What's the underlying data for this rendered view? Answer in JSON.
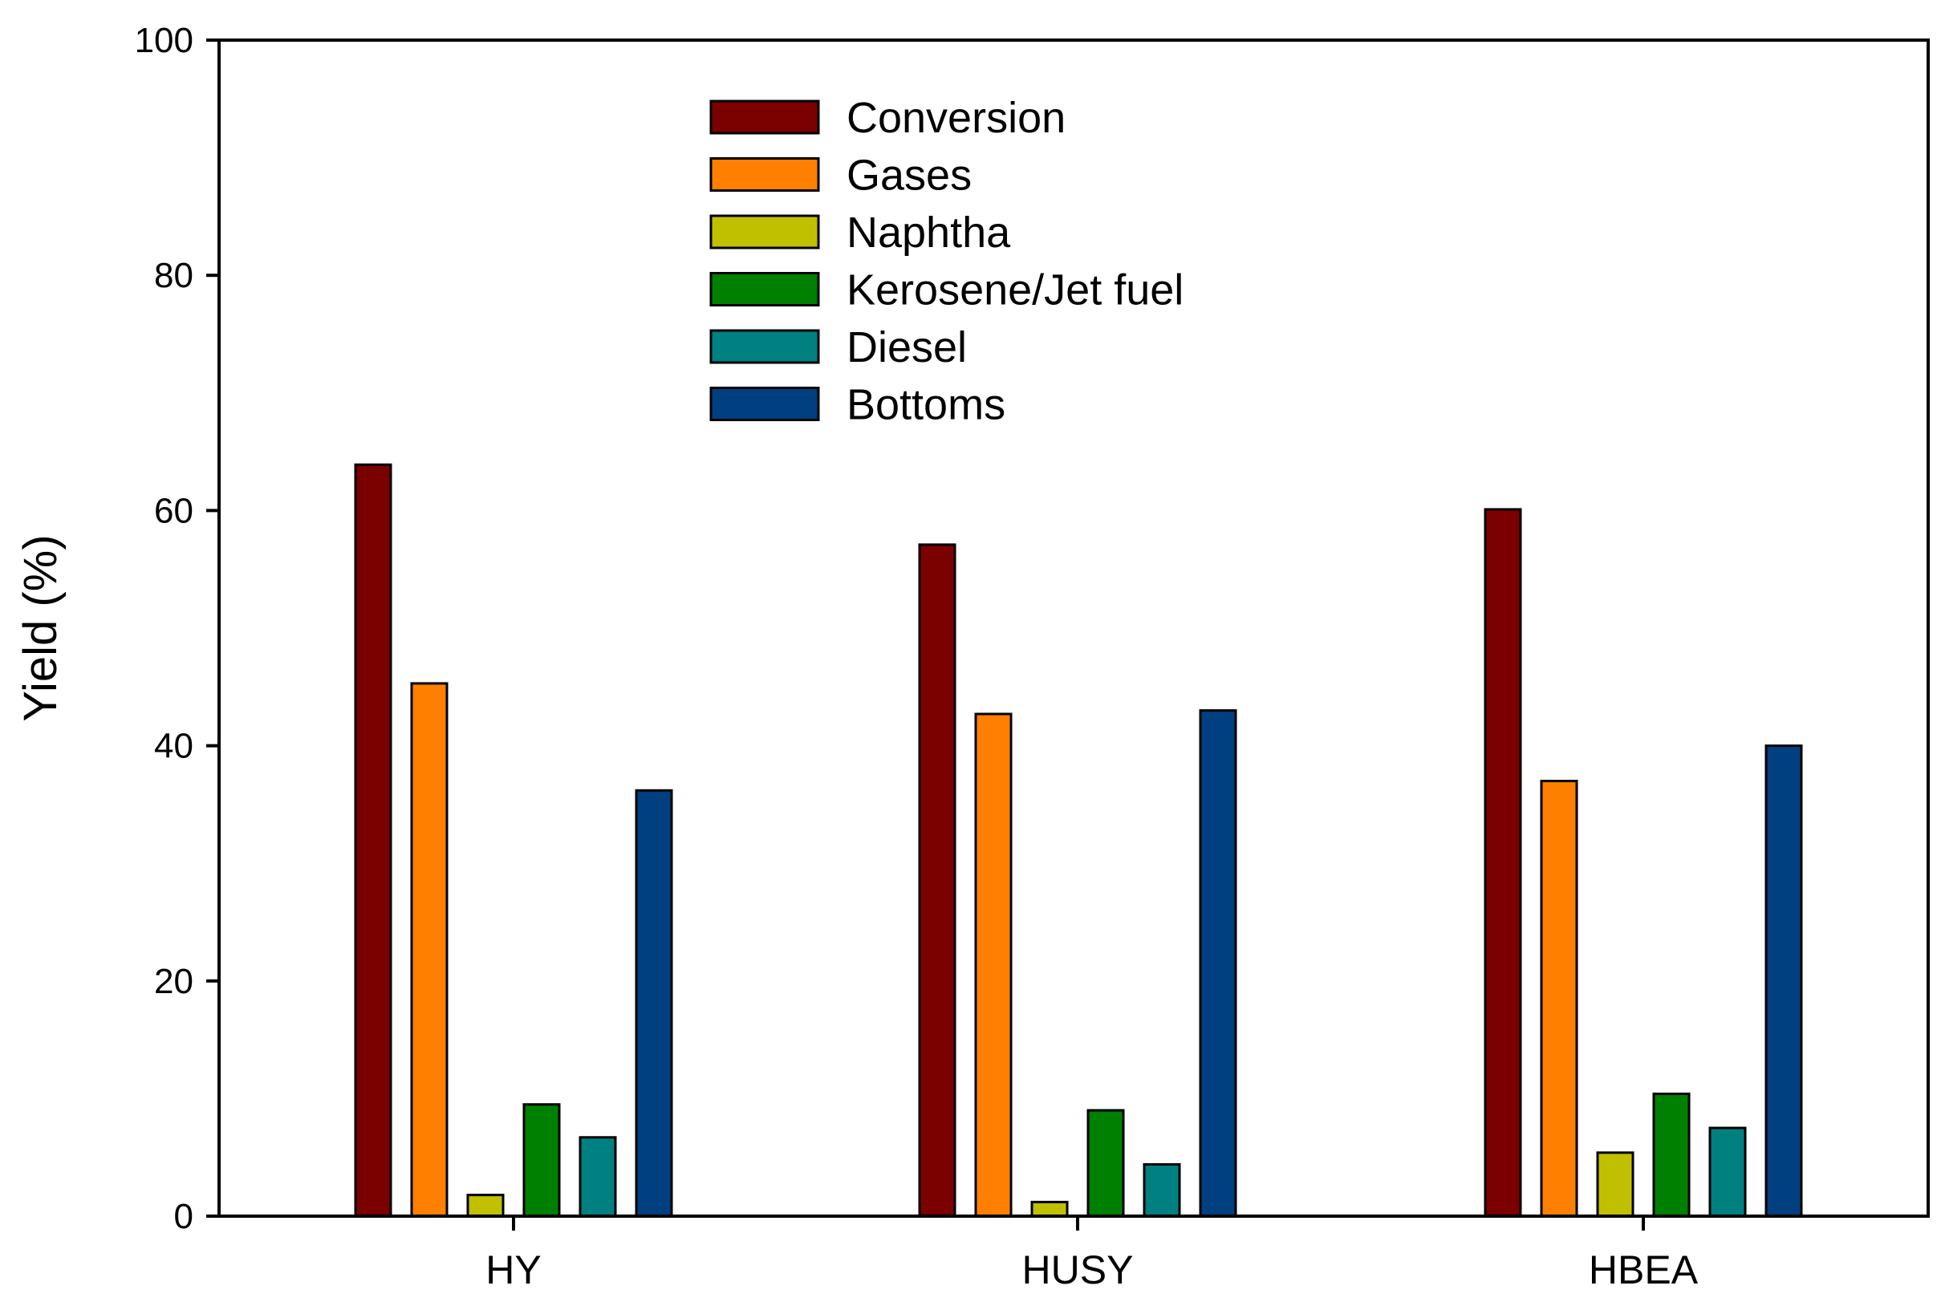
{
  "chart_data": {
    "type": "bar",
    "title": "",
    "xlabel": "",
    "ylabel": "Yield (%)",
    "ylim": [
      0,
      100
    ],
    "yticks": [
      "0",
      "20",
      "40",
      "60",
      "80",
      "100"
    ],
    "categories": [
      "HY",
      "HUSY",
      "HBEA"
    ],
    "grid": false,
    "legend_position": "top-center",
    "series": [
      {
        "name": "Conversion",
        "color": "#7b0000",
        "values": [
          63.9,
          57.1,
          60.1
        ]
      },
      {
        "name": "Gases",
        "color": "#ff8000",
        "values": [
          45.3,
          42.7,
          37.0
        ]
      },
      {
        "name": "Naphtha",
        "color": "#c0c000",
        "values": [
          1.8,
          1.2,
          5.4
        ]
      },
      {
        "name": "Kerosene/Jet fuel",
        "color": "#008000",
        "values": [
          9.5,
          9.0,
          10.4
        ]
      },
      {
        "name": "Diesel",
        "color": "#008080",
        "values": [
          6.7,
          4.4,
          7.5
        ]
      },
      {
        "name": "Bottoms",
        "color": "#004080",
        "values": [
          36.2,
          43.0,
          40.0
        ]
      }
    ]
  }
}
